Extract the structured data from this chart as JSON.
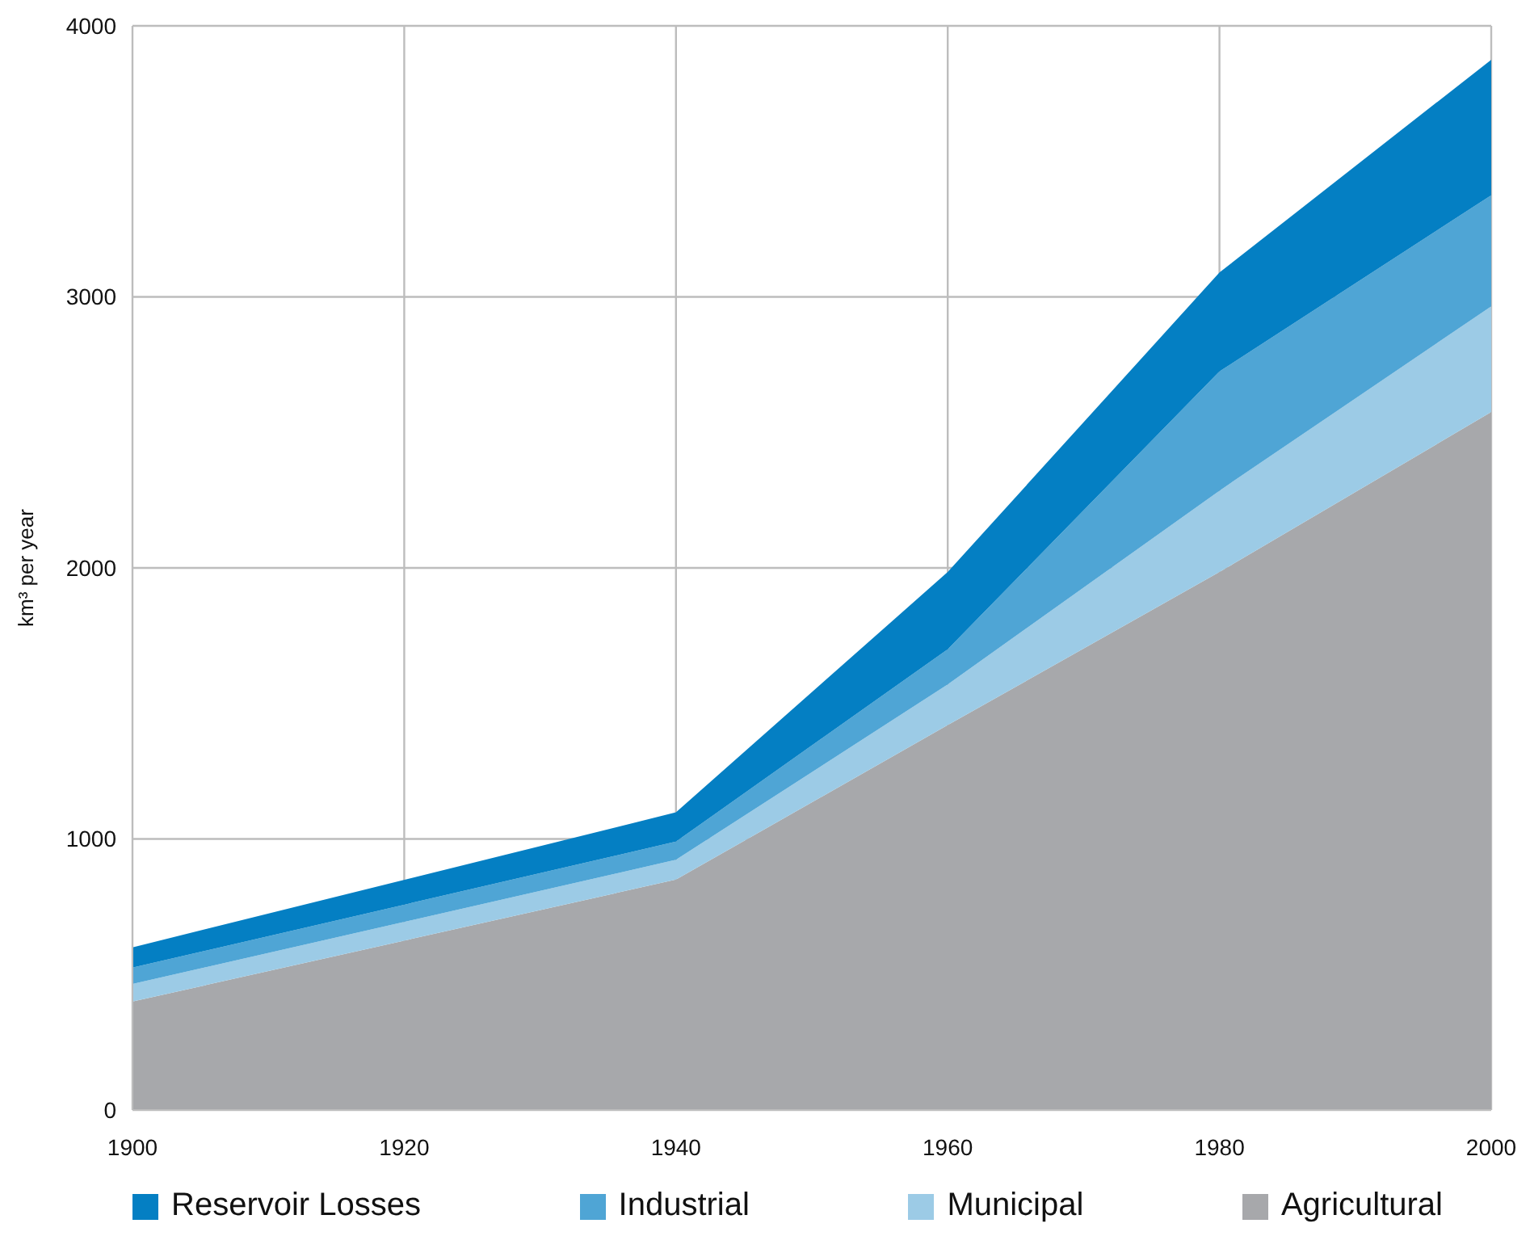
{
  "chart_data": {
    "type": "area",
    "stacked": true,
    "ylabel": "km³ per year",
    "x": [
      1900,
      1940,
      1960,
      1980,
      2000
    ],
    "xlim": [
      1900,
      2000
    ],
    "xticks": [
      1900,
      1920,
      1940,
      1960,
      1980,
      2000
    ],
    "ylim": [
      0,
      4000
    ],
    "yticks": [
      0,
      1000,
      2000,
      3000,
      4000
    ],
    "grid": true,
    "legend": "bottom",
    "series": [
      {
        "name": "Agricultural",
        "color": "#a7a8ab",
        "values": [
          400,
          850,
          1420,
          1985,
          2575
        ]
      },
      {
        "name": "Municipal",
        "color": "#9ccbe6",
        "values": [
          65,
          73,
          150,
          300,
          390
        ]
      },
      {
        "name": "Industrial",
        "color": "#4fa5d5",
        "values": [
          60,
          67,
          130,
          440,
          410
        ]
      },
      {
        "name": "Reservoir Losses",
        "color": "#047fc3",
        "values": [
          75,
          108,
          285,
          365,
          500
        ]
      }
    ]
  }
}
